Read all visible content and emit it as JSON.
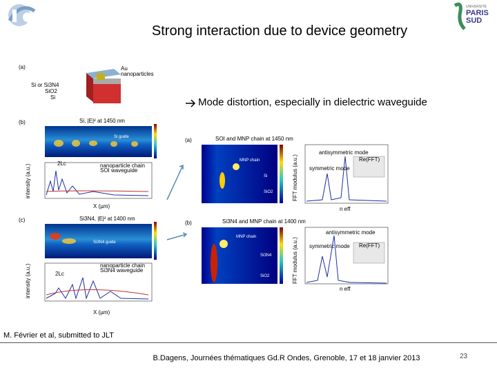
{
  "header": {
    "title": "Strong interaction due to device geometry",
    "logo_right": [
      "UNIVERSITÉ",
      "PARIS",
      "SUD"
    ]
  },
  "bullet": "Mode distortion, especially in dielectric waveguide",
  "figure_left": {
    "a": {
      "label": "(a)",
      "texts": [
        "Au",
        "nanoparticles",
        "Si or Si3N4",
        "SiO2",
        "Si"
      ]
    },
    "b": {
      "label": "(b)",
      "title": "Si, |E|² at 1450 nm",
      "guide": "Si guide",
      "lc": "2Lc",
      "legend": [
        "nanoparticle chain",
        "SOI waveguide"
      ],
      "ylabel": "intensity (a.u.)",
      "xlabel": "X (µm)"
    },
    "c": {
      "label": "(c)",
      "title": "Si3N4, |E|² at 1400 nm",
      "guide": "Si3N4 guide",
      "lc": "2Lc",
      "legend": [
        "nanoparticle chain",
        "Si3N4 waveguide"
      ],
      "ylabel": "intensity (a.u.)",
      "xlabel": "X (µm)"
    }
  },
  "figure_right": {
    "a": {
      "label": "(a)",
      "title": "SOI and MNP chain at 1450 nm",
      "chain": "MNP chain",
      "layers": [
        "Si",
        "SiO2"
      ],
      "modes": [
        "antisymmetric mode",
        "symmetric mode"
      ],
      "inset": "Re(FFT)",
      "ylabel": "FFT modulus (a.u.)",
      "xlabel": "n eff"
    },
    "b": {
      "label": "(b)",
      "title": "Si3N4 and MNP chain at 1400 nm",
      "chain": "MNP chain",
      "layers": [
        "Si3N4",
        "SiO2"
      ],
      "modes": [
        "antisymmetric mode",
        "symmetric mode"
      ],
      "inset": "Re(FFT)",
      "ylabel": "FFT modulus (a.u.)",
      "xlabel": "n eff"
    }
  },
  "citation": "M. Février et al, submitted to JLT",
  "footer": "B.Dagens, Journées thématiques Gd.R Ondes, Grenoble, 17 et 18 janvier 2013",
  "page_number": "23"
}
